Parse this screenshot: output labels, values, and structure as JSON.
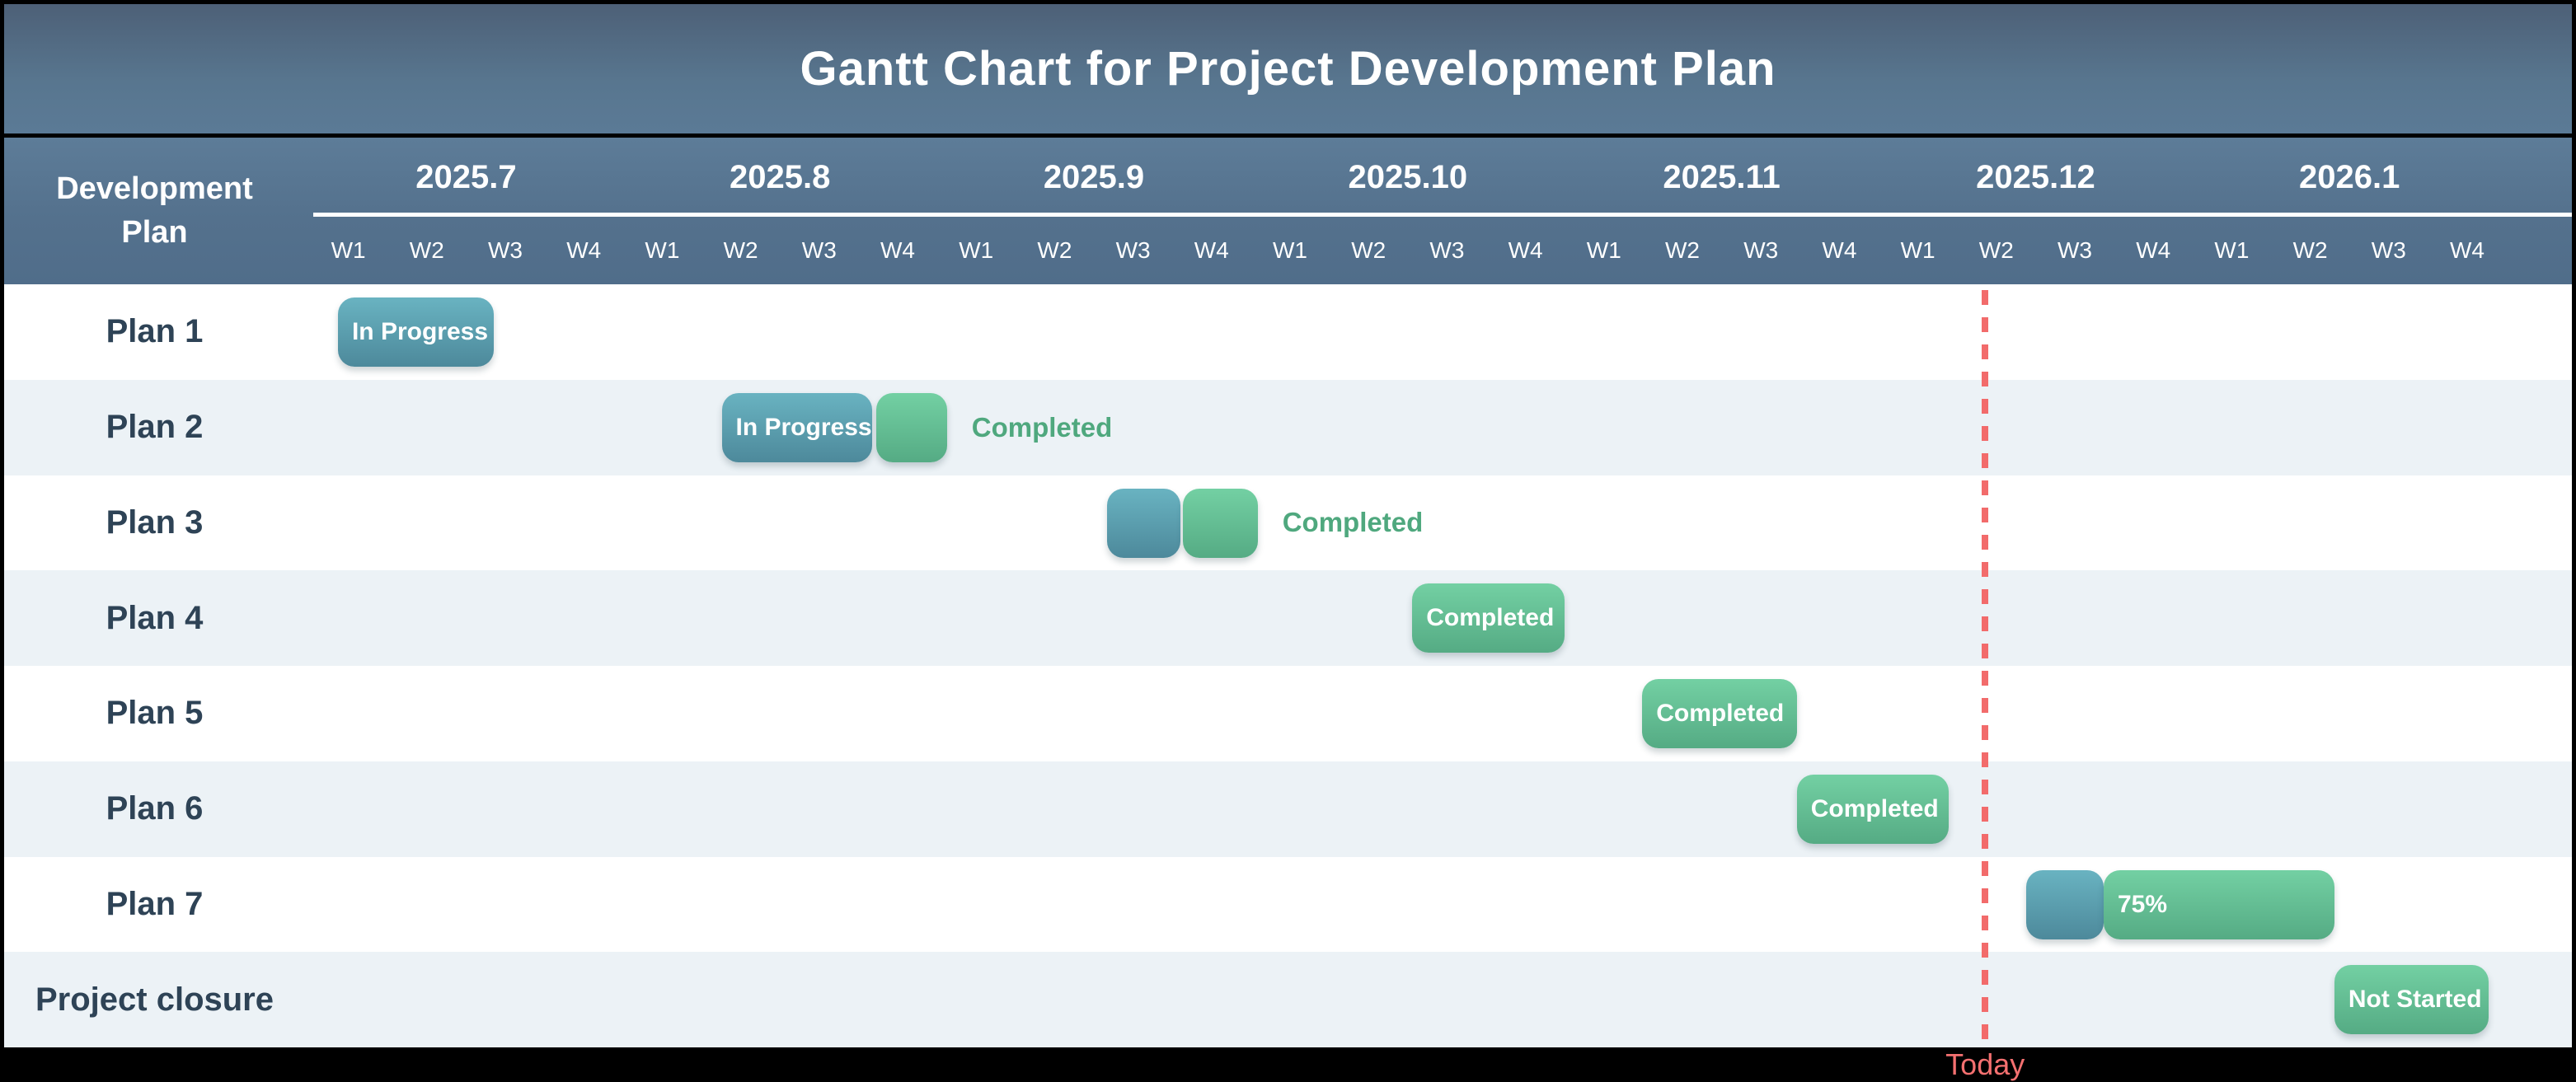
{
  "title": "Gantt Chart for Project Development Plan",
  "left_header": {
    "line1": "Development",
    "line2": "Plan"
  },
  "months": [
    "2025.7",
    "2025.8",
    "2025.9",
    "2025.10",
    "2025.11",
    "2025.12",
    "2026.1"
  ],
  "weeks": [
    "W1",
    "W2",
    "W3",
    "W4"
  ],
  "today": {
    "label": "Today",
    "week": 21.41
  },
  "colors": {
    "band_blue": "#54718d",
    "stripe": "#ecf2f6",
    "row_label_text": "#2e4356",
    "bar_teal_top": "#69b3c1",
    "bar_teal_bottom": "#4d899b",
    "bar_green_top": "#73d0a3",
    "bar_green_bottom": "#55ab84",
    "side_label_green": "#4fa87e",
    "today_red": "#f26b6b"
  },
  "chart_data": {
    "type": "gantt",
    "x_unit": "weeks from 2025.7 W1 (0) to 2026.1 W4 end (28)",
    "months": [
      "2025.7",
      "2025.8",
      "2025.9",
      "2025.10",
      "2025.11",
      "2025.12",
      "2026.1"
    ],
    "weeks_per_month": 4,
    "today_week": 21.41,
    "rows": [
      {
        "name": "Plan 1",
        "bars": [
          {
            "status": "in-progress",
            "label": "In Progress",
            "start": 0.42,
            "end": 2.41
          }
        ]
      },
      {
        "name": "Plan 2",
        "bars": [
          {
            "status": "in-progress",
            "label": "In Progress",
            "start": 5.31,
            "end": 7.23
          },
          {
            "status": "completed",
            "label": "",
            "start": 7.28,
            "end": 8.18
          }
        ],
        "side_label": "Completed"
      },
      {
        "name": "Plan 3",
        "bars": [
          {
            "status": "in-progress",
            "label": "",
            "start": 10.22,
            "end": 11.16
          },
          {
            "status": "completed",
            "label": "",
            "start": 11.19,
            "end": 12.14
          }
        ],
        "side_label": "Completed"
      },
      {
        "name": "Plan 4",
        "bars": [
          {
            "status": "completed",
            "label": "Completed",
            "start": 14.11,
            "end": 16.05
          }
        ]
      },
      {
        "name": "Plan 5",
        "bars": [
          {
            "status": "completed",
            "label": "Completed",
            "start": 17.04,
            "end": 19.01
          }
        ]
      },
      {
        "name": "Plan 6",
        "bars": [
          {
            "status": "completed",
            "label": "Completed",
            "start": 19.01,
            "end": 20.95
          }
        ]
      },
      {
        "name": "Plan 7",
        "bars": [
          {
            "status": "in-progress",
            "label": "",
            "start": 21.93,
            "end": 22.92
          },
          {
            "status": "completed",
            "label": "75%",
            "start": 22.92,
            "end": 25.86
          }
        ]
      },
      {
        "name": "Project closure",
        "bars": [
          {
            "status": "not-started",
            "label": "Not Started",
            "start": 25.86,
            "end": 27.83
          }
        ]
      }
    ]
  }
}
